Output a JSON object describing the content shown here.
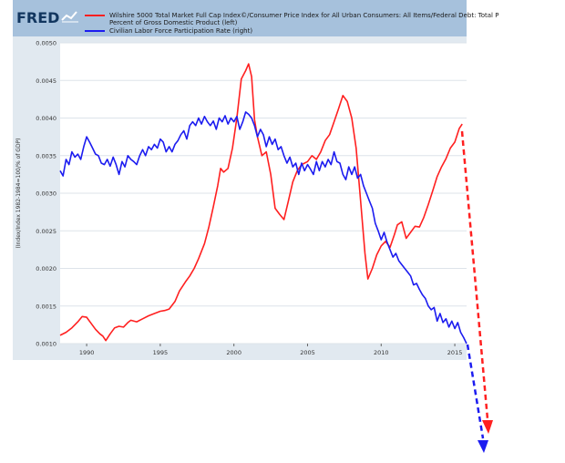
{
  "header": {
    "logo_text": "FRED",
    "series_1_label_line1": "Wilshire 5000 Total Market Full Cap Index©/Consumer Price Index for All Urban Consumers: All Items/Federal Debt: Total P",
    "series_1_label_line2": "Percent of Gross Domestic Product (left)",
    "series_2_label": "Civilian Labor Force Participation Rate (right)"
  },
  "colors": {
    "header_bg": "#a6c1dc",
    "plot_bg": "#ffffff",
    "outer_bg": "#e1e9f0",
    "series_1": "#ff2020",
    "series_2": "#1c1cf0",
    "arrow_red": "#ff2020",
    "arrow_blue": "#1c1cf0"
  },
  "chart_data": {
    "type": "line",
    "title": "",
    "ylabel": "(Index/Index 1982-1984=100/% of GDP)",
    "xlabel": "",
    "x_range": [
      1988.2,
      2015.8
    ],
    "ylim": [
      0.001,
      0.005
    ],
    "y_ticks": [
      0.001,
      0.0015,
      0.002,
      0.0025,
      0.003,
      0.0035,
      0.004,
      0.0045,
      0.005
    ],
    "y_tick_labels": [
      "0.0010",
      "0.0015",
      "0.0020",
      "0.0025",
      "0.0030",
      "0.0035",
      "0.0040",
      "0.0045",
      "0.0050"
    ],
    "x_ticks": [
      1990,
      1995,
      2000,
      2005,
      2010,
      2015
    ],
    "x_tick_labels": [
      "1990",
      "1995",
      "2000",
      "2005",
      "2010",
      "2015"
    ],
    "grid": "horizontal",
    "series": [
      {
        "name": "Wilshire 5000 Total Market Full Cap Index©/Consumer Price Index for All Urban Consumers: All Items/Federal Debt: Total P Percent of Gross Domestic Product (left)",
        "color": "#ff2020",
        "points": [
          [
            1988.2,
            0.00111
          ],
          [
            1988.6,
            0.00115
          ],
          [
            1989.0,
            0.00121
          ],
          [
            1989.4,
            0.00129
          ],
          [
            1989.7,
            0.00136
          ],
          [
            1990.0,
            0.00135
          ],
          [
            1990.3,
            0.00127
          ],
          [
            1990.6,
            0.00119
          ],
          [
            1990.9,
            0.00113
          ],
          [
            1991.1,
            0.0011
          ],
          [
            1991.3,
            0.00104
          ],
          [
            1991.6,
            0.00113
          ],
          [
            1991.9,
            0.00121
          ],
          [
            1992.2,
            0.00123
          ],
          [
            1992.5,
            0.00122
          ],
          [
            1992.8,
            0.00128
          ],
          [
            1993.0,
            0.00131
          ],
          [
            1993.4,
            0.00129
          ],
          [
            1993.8,
            0.00133
          ],
          [
            1994.2,
            0.00137
          ],
          [
            1994.6,
            0.0014
          ],
          [
            1995.0,
            0.00143
          ],
          [
            1995.3,
            0.00144
          ],
          [
            1995.6,
            0.00146
          ],
          [
            1996.0,
            0.00156
          ],
          [
            1996.3,
            0.0017
          ],
          [
            1996.7,
            0.00182
          ],
          [
            1997.0,
            0.0019
          ],
          [
            1997.3,
            0.002
          ],
          [
            1997.6,
            0.00213
          ],
          [
            1998.0,
            0.00233
          ],
          [
            1998.3,
            0.00255
          ],
          [
            1998.6,
            0.00282
          ],
          [
            1998.9,
            0.0031
          ],
          [
            1999.1,
            0.00333
          ],
          [
            1999.3,
            0.00328
          ],
          [
            1999.6,
            0.00333
          ],
          [
            1999.9,
            0.0036
          ],
          [
            2000.2,
            0.004
          ],
          [
            2000.5,
            0.00452
          ],
          [
            2000.8,
            0.00463
          ],
          [
            2001.0,
            0.00472
          ],
          [
            2001.2,
            0.00455
          ],
          [
            2001.4,
            0.00398
          ],
          [
            2001.6,
            0.00375
          ],
          [
            2001.9,
            0.0035
          ],
          [
            2002.2,
            0.00355
          ],
          [
            2002.5,
            0.00325
          ],
          [
            2002.8,
            0.0028
          ],
          [
            2003.1,
            0.00272
          ],
          [
            2003.4,
            0.00265
          ],
          [
            2003.7,
            0.0029
          ],
          [
            2004.0,
            0.00315
          ],
          [
            2004.3,
            0.0033
          ],
          [
            2004.6,
            0.00338
          ],
          [
            2005.0,
            0.00342
          ],
          [
            2005.3,
            0.0035
          ],
          [
            2005.6,
            0.00345
          ],
          [
            2005.9,
            0.00355
          ],
          [
            2006.2,
            0.0037
          ],
          [
            2006.5,
            0.00378
          ],
          [
            2006.8,
            0.00395
          ],
          [
            2007.1,
            0.00412
          ],
          [
            2007.4,
            0.0043
          ],
          [
            2007.7,
            0.00422
          ],
          [
            2008.0,
            0.004
          ],
          [
            2008.3,
            0.0036
          ],
          [
            2008.6,
            0.0029
          ],
          [
            2008.9,
            0.0022
          ],
          [
            2009.1,
            0.00186
          ],
          [
            2009.4,
            0.002
          ],
          [
            2009.7,
            0.00218
          ],
          [
            2010.0,
            0.0023
          ],
          [
            2010.3,
            0.00236
          ],
          [
            2010.6,
            0.00228
          ],
          [
            2010.9,
            0.00245
          ],
          [
            2011.1,
            0.00258
          ],
          [
            2011.4,
            0.00262
          ],
          [
            2011.7,
            0.0024
          ],
          [
            2012.0,
            0.00248
          ],
          [
            2012.3,
            0.00256
          ],
          [
            2012.6,
            0.00255
          ],
          [
            2012.9,
            0.00268
          ],
          [
            2013.2,
            0.00285
          ],
          [
            2013.5,
            0.00303
          ],
          [
            2013.8,
            0.00322
          ],
          [
            2014.1,
            0.00335
          ],
          [
            2014.4,
            0.00346
          ],
          [
            2014.7,
            0.0036
          ],
          [
            2015.0,
            0.00368
          ],
          [
            2015.3,
            0.00386
          ],
          [
            2015.5,
            0.00392
          ]
        ]
      },
      {
        "name": "Civilian Labor Force Participation Rate (right)",
        "color": "#1c1cf0",
        "points": [
          [
            1988.2,
            0.0033
          ],
          [
            1988.4,
            0.00323
          ],
          [
            1988.6,
            0.00345
          ],
          [
            1988.8,
            0.00338
          ],
          [
            1989.0,
            0.00355
          ],
          [
            1989.2,
            0.00348
          ],
          [
            1989.4,
            0.00352
          ],
          [
            1989.6,
            0.00345
          ],
          [
            1989.8,
            0.00362
          ],
          [
            1990.0,
            0.00375
          ],
          [
            1990.2,
            0.00368
          ],
          [
            1990.4,
            0.0036
          ],
          [
            1990.6,
            0.00352
          ],
          [
            1990.8,
            0.0035
          ],
          [
            1991.0,
            0.0034
          ],
          [
            1991.2,
            0.00338
          ],
          [
            1991.4,
            0.00345
          ],
          [
            1991.6,
            0.00336
          ],
          [
            1991.8,
            0.00348
          ],
          [
            1992.0,
            0.00338
          ],
          [
            1992.2,
            0.00325
          ],
          [
            1992.4,
            0.00342
          ],
          [
            1992.6,
            0.00335
          ],
          [
            1992.8,
            0.0035
          ],
          [
            1993.0,
            0.00345
          ],
          [
            1993.2,
            0.00342
          ],
          [
            1993.4,
            0.00338
          ],
          [
            1993.6,
            0.0035
          ],
          [
            1993.8,
            0.00358
          ],
          [
            1994.0,
            0.0035
          ],
          [
            1994.2,
            0.00362
          ],
          [
            1994.4,
            0.00358
          ],
          [
            1994.6,
            0.00365
          ],
          [
            1994.8,
            0.0036
          ],
          [
            1995.0,
            0.00372
          ],
          [
            1995.2,
            0.00368
          ],
          [
            1995.4,
            0.00355
          ],
          [
            1995.6,
            0.00362
          ],
          [
            1995.8,
            0.00355
          ],
          [
            1996.0,
            0.00365
          ],
          [
            1996.2,
            0.0037
          ],
          [
            1996.4,
            0.00378
          ],
          [
            1996.6,
            0.00383
          ],
          [
            1996.8,
            0.00372
          ],
          [
            1997.0,
            0.0039
          ],
          [
            1997.2,
            0.00395
          ],
          [
            1997.4,
            0.0039
          ],
          [
            1997.6,
            0.004
          ],
          [
            1997.8,
            0.00392
          ],
          [
            1998.0,
            0.00402
          ],
          [
            1998.2,
            0.00395
          ],
          [
            1998.4,
            0.0039
          ],
          [
            1998.6,
            0.00396
          ],
          [
            1998.8,
            0.00385
          ],
          [
            1999.0,
            0.004
          ],
          [
            1999.2,
            0.00395
          ],
          [
            1999.4,
            0.00403
          ],
          [
            1999.6,
            0.00392
          ],
          [
            1999.8,
            0.004
          ],
          [
            2000.0,
            0.00395
          ],
          [
            2000.2,
            0.00402
          ],
          [
            2000.4,
            0.00385
          ],
          [
            2000.6,
            0.00395
          ],
          [
            2000.8,
            0.00408
          ],
          [
            2001.0,
            0.00405
          ],
          [
            2001.2,
            0.004
          ],
          [
            2001.4,
            0.0039
          ],
          [
            2001.6,
            0.00375
          ],
          [
            2001.8,
            0.00385
          ],
          [
            2002.0,
            0.00378
          ],
          [
            2002.2,
            0.00362
          ],
          [
            2002.4,
            0.00375
          ],
          [
            2002.6,
            0.00365
          ],
          [
            2002.8,
            0.00372
          ],
          [
            2003.0,
            0.00358
          ],
          [
            2003.2,
            0.00362
          ],
          [
            2003.4,
            0.0035
          ],
          [
            2003.6,
            0.0034
          ],
          [
            2003.8,
            0.00348
          ],
          [
            2004.0,
            0.00335
          ],
          [
            2004.2,
            0.0034
          ],
          [
            2004.4,
            0.00325
          ],
          [
            2004.6,
            0.0034
          ],
          [
            2004.8,
            0.0033
          ],
          [
            2005.0,
            0.00338
          ],
          [
            2005.2,
            0.00332
          ],
          [
            2005.4,
            0.00325
          ],
          [
            2005.6,
            0.00342
          ],
          [
            2005.8,
            0.0033
          ],
          [
            2006.0,
            0.00342
          ],
          [
            2006.2,
            0.00335
          ],
          [
            2006.4,
            0.00345
          ],
          [
            2006.6,
            0.00338
          ],
          [
            2006.8,
            0.00355
          ],
          [
            2007.0,
            0.00342
          ],
          [
            2007.2,
            0.0034
          ],
          [
            2007.4,
            0.00325
          ],
          [
            2007.6,
            0.00318
          ],
          [
            2007.8,
            0.00335
          ],
          [
            2008.0,
            0.00325
          ],
          [
            2008.2,
            0.00335
          ],
          [
            2008.4,
            0.0032
          ],
          [
            2008.6,
            0.00325
          ],
          [
            2008.8,
            0.0031
          ],
          [
            2009.0,
            0.003
          ],
          [
            2009.2,
            0.0029
          ],
          [
            2009.4,
            0.0028
          ],
          [
            2009.6,
            0.0026
          ],
          [
            2009.8,
            0.0025
          ],
          [
            2010.0,
            0.00238
          ],
          [
            2010.2,
            0.00248
          ],
          [
            2010.4,
            0.00235
          ],
          [
            2010.6,
            0.00225
          ],
          [
            2010.8,
            0.00215
          ],
          [
            2011.0,
            0.0022
          ],
          [
            2011.2,
            0.0021
          ],
          [
            2011.4,
            0.00205
          ],
          [
            2011.6,
            0.002
          ],
          [
            2011.8,
            0.00195
          ],
          [
            2012.0,
            0.0019
          ],
          [
            2012.2,
            0.00178
          ],
          [
            2012.4,
            0.0018
          ],
          [
            2012.6,
            0.00172
          ],
          [
            2012.8,
            0.00165
          ],
          [
            2013.0,
            0.0016
          ],
          [
            2013.2,
            0.0015
          ],
          [
            2013.4,
            0.00145
          ],
          [
            2013.6,
            0.00148
          ],
          [
            2013.8,
            0.0013
          ],
          [
            2014.0,
            0.0014
          ],
          [
            2014.2,
            0.00128
          ],
          [
            2014.4,
            0.00133
          ],
          [
            2014.6,
            0.00122
          ],
          [
            2014.8,
            0.0013
          ],
          [
            2015.0,
            0.0012
          ],
          [
            2015.2,
            0.00128
          ],
          [
            2015.4,
            0.00115
          ],
          [
            2015.6,
            0.00108
          ],
          [
            2015.8,
            0.001
          ]
        ]
      }
    ]
  }
}
